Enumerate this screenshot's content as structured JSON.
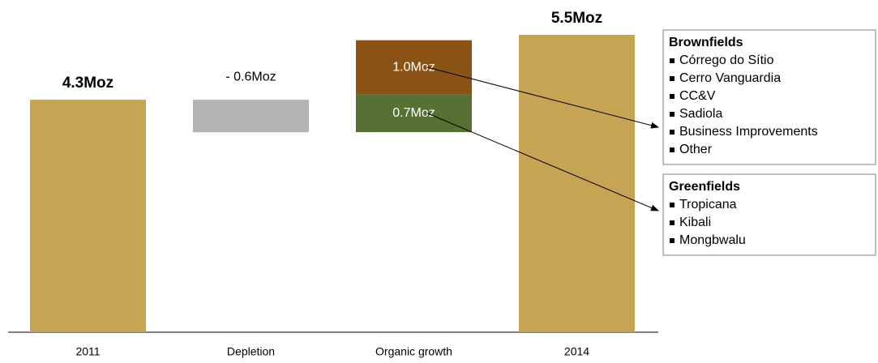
{
  "chart_data": {
    "type": "waterfall",
    "ylim": [
      0,
      5.5
    ],
    "bars": [
      {
        "category": "2011",
        "measure": "total",
        "value": 4.3,
        "value_label": "4.3Moz",
        "color": "#c5a553"
      },
      {
        "category": "Depletion",
        "measure": "relative",
        "value": -0.6,
        "value_label": "- 0.6Moz",
        "color": "#b3b3b3"
      },
      {
        "category": "Organic growth",
        "measure": "relative",
        "segments": [
          {
            "value": 0.7,
            "value_label": "0.7Moz",
            "color": "#577034"
          },
          {
            "value": 1.0,
            "value_label": "1.0Moz",
            "color": "#8b5215"
          }
        ]
      },
      {
        "category": "2014",
        "measure": "total",
        "value": 5.5,
        "value_label": "5.5Moz",
        "color": "#c5a553"
      }
    ],
    "callouts": [
      {
        "title": "Brownfields",
        "items": [
          "Córrego do Sítio",
          "Cerro Vanguardia",
          "CC&V",
          "Sadiola",
          "Business Improvements",
          "Other"
        ]
      },
      {
        "title": "Greenfields",
        "items": [
          "Tropicana",
          "Kibali",
          "Mongbwalu"
        ]
      }
    ]
  }
}
